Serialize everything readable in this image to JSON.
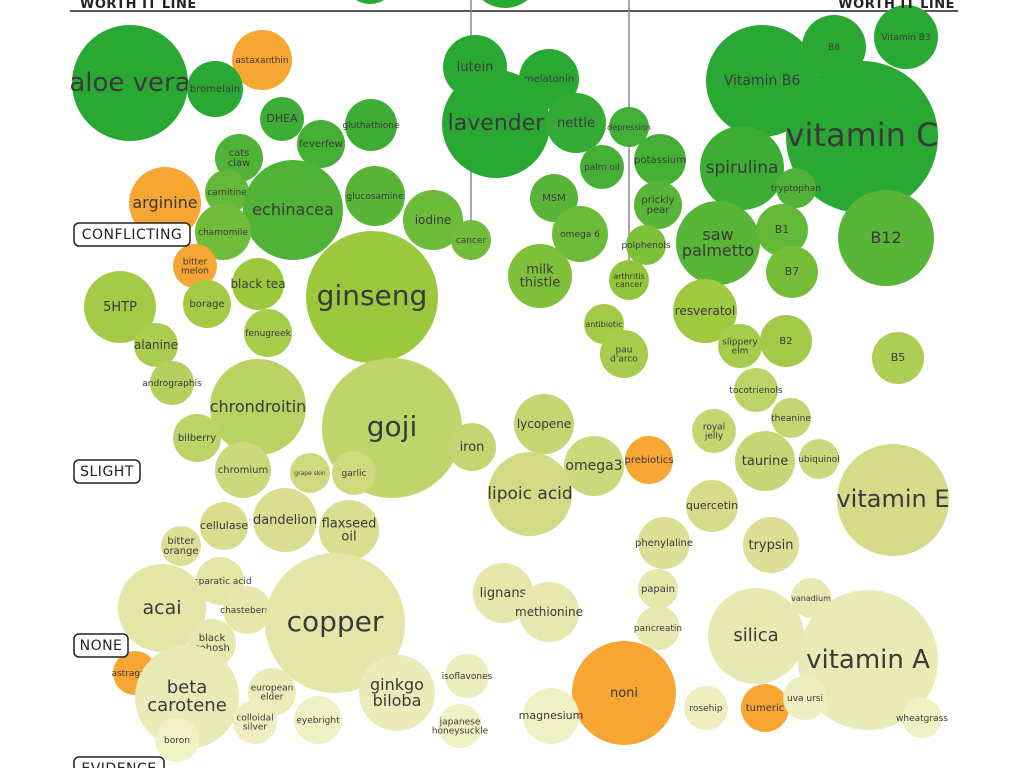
{
  "chart_data": {
    "type": "bubble",
    "header": {
      "left_label": "WORTH IT LINE",
      "right_label": "WORTH IT LINE"
    },
    "evidence_levels": [
      {
        "label": "CONFLICTING"
      },
      {
        "label": "SLIGHT"
      },
      {
        "label": "NONE"
      },
      {
        "label": "EVIDENCE"
      }
    ],
    "colors": {
      "strong": "#2aa834",
      "mid": "#9bc83c",
      "weak": "#d8dc8c",
      "faint": "#f1f1c8",
      "highlight": "#f7a533"
    },
    "bubbles": [
      {
        "label": "aloe vera",
        "size": 58,
        "score": 0.92
      },
      {
        "label": "astaxanthin",
        "size": 30,
        "score": -1
      },
      {
        "label": "bromelain",
        "size": 28,
        "score": 0.9
      },
      {
        "label": "DHEA",
        "size": 22,
        "score": 0.86
      },
      {
        "label": "gluthathione",
        "size": 26,
        "score": 0.86
      },
      {
        "label": "feverfew",
        "size": 24,
        "score": 0.84
      },
      {
        "label": "cats claw",
        "size": 24,
        "score": 0.82
      },
      {
        "label": "carnitine",
        "size": 22,
        "score": 0.78
      },
      {
        "label": "arginine",
        "size": 36,
        "score": -1
      },
      {
        "label": "echinacea",
        "size": 50,
        "score": 0.82
      },
      {
        "label": "glucosamine",
        "size": 30,
        "score": 0.8
      },
      {
        "label": "chamomile",
        "size": 28,
        "score": 0.75
      },
      {
        "label": "iodine",
        "size": 30,
        "score": 0.76
      },
      {
        "label": "cancer",
        "size": 20,
        "score": 0.75
      },
      {
        "label": "lutein",
        "size": 32,
        "score": 0.92
      },
      {
        "label": "melatonin",
        "size": 30,
        "score": 0.9
      },
      {
        "label": "lavender",
        "size": 54,
        "score": 0.9
      },
      {
        "label": "nettle",
        "size": 30,
        "score": 0.88
      },
      {
        "label": "depression",
        "size": 20,
        "score": 0.85
      },
      {
        "label": "palm oil",
        "size": 22,
        "score": 0.84
      },
      {
        "label": "potassium",
        "size": 26,
        "score": 0.84
      },
      {
        "label": "MSM",
        "size": 24,
        "score": 0.8
      },
      {
        "label": "prickly pear",
        "size": 24,
        "score": 0.8
      },
      {
        "label": "omega 6",
        "size": 28,
        "score": 0.76
      },
      {
        "label": "polphenols",
        "size": 20,
        "score": 0.72
      },
      {
        "label": "milk thistle",
        "size": 32,
        "score": 0.72
      },
      {
        "label": "arthritis cancer",
        "size": 20,
        "score": 0.68
      },
      {
        "label": "Vitamin B3",
        "size": 32,
        "score": 0.95
      },
      {
        "label": "B8",
        "size": 32,
        "score": 0.95
      },
      {
        "label": "Vitamin B6",
        "size": 56,
        "score": 0.93
      },
      {
        "label": "vitamin C",
        "size": 76,
        "score": 0.9
      },
      {
        "label": "spirulina",
        "size": 42,
        "score": 0.86
      },
      {
        "label": "tryptophan",
        "size": 20,
        "score": 0.82
      },
      {
        "label": "saw palmetto",
        "size": 42,
        "score": 0.8
      },
      {
        "label": "B1",
        "size": 26,
        "score": 0.78
      },
      {
        "label": "B12",
        "size": 48,
        "score": 0.8
      },
      {
        "label": "B7",
        "size": 26,
        "score": 0.74
      },
      {
        "label": "bitter melon",
        "size": 22,
        "score": -1
      },
      {
        "label": "black tea",
        "size": 26,
        "score": 0.66
      },
      {
        "label": "ginseng",
        "size": 66,
        "score": 0.66
      },
      {
        "label": "5HTP",
        "size": 36,
        "score": 0.62
      },
      {
        "label": "borage",
        "size": 24,
        "score": 0.62
      },
      {
        "label": "fenugreek",
        "size": 24,
        "score": 0.6
      },
      {
        "label": "alanine",
        "size": 22,
        "score": 0.58
      },
      {
        "label": "andrographis",
        "size": 22,
        "score": 0.52
      },
      {
        "label": "resveratol",
        "size": 32,
        "score": 0.64
      },
      {
        "label": "antibiotic",
        "size": 20,
        "score": 0.62
      },
      {
        "label": "pau d'arco",
        "size": 24,
        "score": 0.6
      },
      {
        "label": "slippery elm",
        "size": 22,
        "score": 0.6
      },
      {
        "label": "B2",
        "size": 26,
        "score": 0.62
      },
      {
        "label": "B5",
        "size": 26,
        "score": 0.56
      },
      {
        "label": "chrondroitin",
        "size": 48,
        "score": 0.5
      },
      {
        "label": "bilberry",
        "size": 24,
        "score": 0.48
      },
      {
        "label": "goji",
        "size": 70,
        "score": 0.46
      },
      {
        "label": "iron",
        "size": 24,
        "score": 0.44
      },
      {
        "label": "lycopene",
        "size": 30,
        "score": 0.44
      },
      {
        "label": "tocotrienols",
        "size": 22,
        "score": 0.48
      },
      {
        "label": "royal jelly",
        "size": 22,
        "score": 0.44
      },
      {
        "label": "theanine",
        "size": 20,
        "score": 0.44
      },
      {
        "label": "chromium",
        "size": 28,
        "score": 0.4
      },
      {
        "label": "grape skin",
        "size": 20,
        "score": 0.38
      },
      {
        "label": "garlic",
        "size": 22,
        "score": 0.38
      },
      {
        "label": "omega3",
        "size": 30,
        "score": 0.4
      },
      {
        "label": "prebiotics",
        "size": 24,
        "score": -1
      },
      {
        "label": "taurine",
        "size": 30,
        "score": 0.42
      },
      {
        "label": "ubiquinol",
        "size": 20,
        "score": 0.4
      },
      {
        "label": "lipoic acid",
        "size": 42,
        "score": 0.36
      },
      {
        "label": "quercetin",
        "size": 26,
        "score": 0.34
      },
      {
        "label": "vitamin E",
        "size": 56,
        "score": 0.34
      },
      {
        "label": "cellulase",
        "size": 24,
        "score": 0.32
      },
      {
        "label": "dandelion",
        "size": 32,
        "score": 0.3
      },
      {
        "label": "flaxseed oil",
        "size": 30,
        "score": 0.3
      },
      {
        "label": "bitter orange",
        "size": 20,
        "score": 0.28
      },
      {
        "label": "phenylaline",
        "size": 26,
        "score": 0.28
      },
      {
        "label": "trypsin",
        "size": 28,
        "score": 0.28
      },
      {
        "label": "asparatic acid",
        "size": 24,
        "score": 0.18
      },
      {
        "label": "acai",
        "size": 44,
        "score": 0.18
      },
      {
        "label": "chasteberry",
        "size": 24,
        "score": 0.16
      },
      {
        "label": "copper",
        "size": 70,
        "score": 0.18
      },
      {
        "label": "lignans",
        "size": 30,
        "score": 0.16
      },
      {
        "label": "methionine",
        "size": 30,
        "score": 0.14
      },
      {
        "label": "papain",
        "size": 20,
        "score": 0.16
      },
      {
        "label": "vanadium",
        "size": 20,
        "score": 0.12
      },
      {
        "label": "black cohosh",
        "size": 24,
        "score": 0.14
      },
      {
        "label": "pancreatin",
        "size": 22,
        "score": 0.12
      },
      {
        "label": "silica",
        "size": 48,
        "score": 0.12
      },
      {
        "label": "astragalus",
        "size": 22,
        "score": -1
      },
      {
        "label": "vitamin A",
        "size": 70,
        "score": 0.1
      },
      {
        "label": "beta carotene",
        "size": 52,
        "score": 0.1
      },
      {
        "label": "european elder",
        "size": 24,
        "score": 0.08
      },
      {
        "label": "ginkgo biloba",
        "size": 38,
        "score": 0.08
      },
      {
        "label": "isoflavones",
        "size": 22,
        "score": 0.06
      },
      {
        "label": "noni",
        "size": 52,
        "score": -1
      },
      {
        "label": "rosehip",
        "size": 22,
        "score": 0.04
      },
      {
        "label": "tumeric",
        "size": 24,
        "score": -1
      },
      {
        "label": "uva ursi",
        "size": 22,
        "score": 0.04
      },
      {
        "label": "colloidal silver",
        "size": 22,
        "score": 0.04
      },
      {
        "label": "eyebright",
        "size": 24,
        "score": 0.02
      },
      {
        "label": "japanese honeysuckle",
        "size": 22,
        "score": 0.02
      },
      {
        "label": "magnesium",
        "size": 28,
        "score": 0.02
      },
      {
        "label": "wheatgrass",
        "size": 20,
        "score": 0.02
      },
      {
        "label": "boron",
        "size": 22,
        "score": 0.0
      }
    ]
  }
}
